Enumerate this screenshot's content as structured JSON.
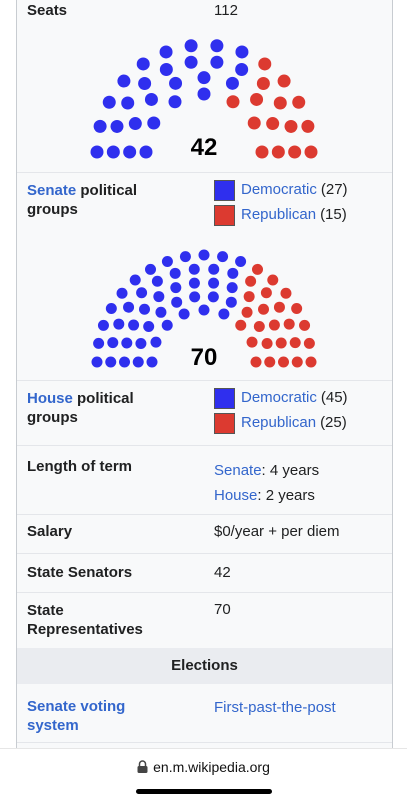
{
  "seats": {
    "label": "Seats",
    "value": "112"
  },
  "senate": {
    "total": 42,
    "groups_link": "Senate",
    "groups_text": "political groups",
    "parties": [
      {
        "name": "Democratic",
        "seats": 27,
        "seats_label": "(27)",
        "color": "#2f2fee"
      },
      {
        "name": "Republican",
        "seats": 15,
        "seats_label": "(15)",
        "color": "#dc3a30"
      }
    ]
  },
  "house": {
    "total": 70,
    "groups_link": "House",
    "groups_text": "political groups",
    "parties": [
      {
        "name": "Democratic",
        "seats": 45,
        "seats_label": "(45)",
        "color": "#2f2fee"
      },
      {
        "name": "Republican",
        "seats": 25,
        "seats_label": "(25)",
        "color": "#dc3a30"
      }
    ]
  },
  "term": {
    "label": "Length of term",
    "entries": [
      {
        "link": "Senate",
        "text": ": 4 years"
      },
      {
        "link": "House",
        "text": ": 2 years"
      }
    ]
  },
  "salary": {
    "label": "Salary",
    "value": "$0/year + per diem"
  },
  "state_senators": {
    "label": "State Senators",
    "value": "42"
  },
  "state_representatives": {
    "label": "State Representatives",
    "value": "70"
  },
  "elections": {
    "header": "Elections",
    "senate_voting_label": "Senate voting system",
    "senate_voting_value": "First-past-the-post"
  },
  "browser": {
    "url": "en.m.wikipedia.org"
  }
}
